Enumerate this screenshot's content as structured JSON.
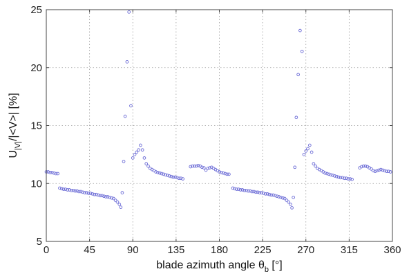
{
  "chart_data": {
    "type": "scatter",
    "xlabel": {
      "main": "blade azimuth angle θ",
      "sub": "b",
      "unit": " [°]"
    },
    "ylabel": {
      "main": "U",
      "sub": "|V|",
      "rest": "/|<V>| [%]"
    },
    "xlim": [
      0,
      360
    ],
    "ylim": [
      5,
      25
    ],
    "xticks": [
      0,
      45,
      90,
      135,
      180,
      225,
      270,
      315,
      360
    ],
    "yticks": [
      5,
      10,
      15,
      20,
      25
    ],
    "grid": true,
    "marker_color": "#6b6bd6",
    "series": [
      {
        "points": [
          [
            0,
            11.0
          ],
          [
            2,
            11.0
          ],
          [
            4,
            10.95
          ],
          [
            6,
            10.95
          ],
          [
            8,
            10.9
          ],
          [
            10,
            10.85
          ],
          [
            12,
            10.85
          ],
          [
            14,
            9.6
          ],
          [
            16,
            9.55
          ],
          [
            18,
            9.5
          ],
          [
            20,
            9.5
          ],
          [
            22,
            9.45
          ],
          [
            24,
            9.45
          ],
          [
            26,
            9.4
          ],
          [
            28,
            9.4
          ],
          [
            30,
            9.35
          ],
          [
            32,
            9.35
          ],
          [
            34,
            9.3
          ],
          [
            36,
            9.3
          ],
          [
            38,
            9.25
          ],
          [
            40,
            9.2
          ],
          [
            42,
            9.2
          ],
          [
            44,
            9.15
          ],
          [
            46,
            9.15
          ],
          [
            48,
            9.1
          ],
          [
            50,
            9.05
          ],
          [
            52,
            9.05
          ],
          [
            54,
            9.0
          ],
          [
            56,
            8.95
          ],
          [
            58,
            8.95
          ],
          [
            60,
            8.9
          ],
          [
            62,
            8.85
          ],
          [
            64,
            8.85
          ],
          [
            66,
            8.8
          ],
          [
            68,
            8.75
          ],
          [
            70,
            8.7
          ],
          [
            72,
            8.55
          ],
          [
            74,
            8.4
          ],
          [
            76,
            8.2
          ],
          [
            77.5,
            7.95
          ],
          [
            79,
            9.2
          ],
          [
            80.5,
            11.9
          ],
          [
            82,
            15.8
          ],
          [
            84,
            20.5
          ],
          [
            86,
            24.8
          ],
          [
            88,
            16.7
          ],
          [
            90,
            12.2
          ],
          [
            92,
            12.5
          ],
          [
            94,
            12.7
          ],
          [
            96,
            12.9
          ],
          [
            98,
            13.3
          ],
          [
            100,
            12.9
          ],
          [
            102,
            12.2
          ],
          [
            104,
            11.7
          ],
          [
            106,
            11.5
          ],
          [
            108,
            11.3
          ],
          [
            110,
            11.2
          ],
          [
            112,
            11.1
          ],
          [
            114,
            11.0
          ],
          [
            116,
            10.95
          ],
          [
            118,
            10.9
          ],
          [
            120,
            10.85
          ],
          [
            122,
            10.8
          ],
          [
            124,
            10.75
          ],
          [
            126,
            10.7
          ],
          [
            128,
            10.65
          ],
          [
            130,
            10.6
          ],
          [
            132,
            10.55
          ],
          [
            134,
            10.55
          ],
          [
            136,
            10.5
          ],
          [
            138,
            10.45
          ],
          [
            140,
            10.45
          ],
          [
            142,
            10.4
          ],
          [
            150,
            11.45
          ],
          [
            152,
            11.5
          ],
          [
            154,
            11.5
          ],
          [
            156,
            11.5
          ],
          [
            158,
            11.55
          ],
          [
            160,
            11.5
          ],
          [
            162,
            11.4
          ],
          [
            164,
            11.35
          ],
          [
            166,
            11.15
          ],
          [
            168,
            11.3
          ],
          [
            170,
            11.35
          ],
          [
            172,
            11.4
          ],
          [
            174,
            11.3
          ],
          [
            176,
            11.2
          ],
          [
            178,
            11.1
          ],
          [
            180,
            11.0
          ],
          [
            182,
            10.95
          ],
          [
            184,
            10.9
          ],
          [
            186,
            10.85
          ],
          [
            188,
            10.8
          ],
          [
            190,
            10.8
          ],
          [
            194,
            9.6
          ],
          [
            196,
            9.55
          ],
          [
            198,
            9.5
          ],
          [
            200,
            9.5
          ],
          [
            202,
            9.45
          ],
          [
            204,
            9.45
          ],
          [
            206,
            9.4
          ],
          [
            208,
            9.4
          ],
          [
            210,
            9.35
          ],
          [
            212,
            9.35
          ],
          [
            214,
            9.3
          ],
          [
            216,
            9.3
          ],
          [
            218,
            9.25
          ],
          [
            220,
            9.25
          ],
          [
            222,
            9.2
          ],
          [
            224,
            9.2
          ],
          [
            226,
            9.15
          ],
          [
            228,
            9.1
          ],
          [
            230,
            9.1
          ],
          [
            232,
            9.05
          ],
          [
            234,
            9.0
          ],
          [
            236,
            9.0
          ],
          [
            238,
            8.95
          ],
          [
            240,
            8.9
          ],
          [
            242,
            8.85
          ],
          [
            244,
            8.8
          ],
          [
            246,
            8.75
          ],
          [
            248,
            8.7
          ],
          [
            250,
            8.55
          ],
          [
            252,
            8.4
          ],
          [
            254,
            8.2
          ],
          [
            255.5,
            7.9
          ],
          [
            257,
            8.8
          ],
          [
            258.5,
            11.4
          ],
          [
            260,
            15.7
          ],
          [
            262,
            19.4
          ],
          [
            264,
            23.2
          ],
          [
            266,
            21.4
          ],
          [
            268,
            12.5
          ],
          [
            270,
            12.8
          ],
          [
            272,
            13.0
          ],
          [
            274,
            13.3
          ],
          [
            276,
            12.7
          ],
          [
            278,
            11.7
          ],
          [
            280,
            11.5
          ],
          [
            282,
            11.3
          ],
          [
            284,
            11.2
          ],
          [
            286,
            11.1
          ],
          [
            288,
            11.0
          ],
          [
            290,
            10.9
          ],
          [
            292,
            10.85
          ],
          [
            294,
            10.8
          ],
          [
            296,
            10.75
          ],
          [
            298,
            10.7
          ],
          [
            300,
            10.65
          ],
          [
            302,
            10.6
          ],
          [
            304,
            10.55
          ],
          [
            306,
            10.5
          ],
          [
            308,
            10.5
          ],
          [
            310,
            10.45
          ],
          [
            312,
            10.45
          ],
          [
            314,
            10.4
          ],
          [
            316,
            10.4
          ],
          [
            318,
            10.35
          ],
          [
            326,
            11.35
          ],
          [
            328,
            11.45
          ],
          [
            330,
            11.5
          ],
          [
            332,
            11.5
          ],
          [
            334,
            11.45
          ],
          [
            336,
            11.35
          ],
          [
            338,
            11.25
          ],
          [
            340,
            11.1
          ],
          [
            342,
            11.05
          ],
          [
            344,
            11.1
          ],
          [
            346,
            11.15
          ],
          [
            348,
            11.2
          ],
          [
            350,
            11.15
          ],
          [
            352,
            11.1
          ],
          [
            354,
            11.05
          ],
          [
            356,
            11.05
          ],
          [
            358,
            11.0
          ]
        ]
      }
    ]
  }
}
